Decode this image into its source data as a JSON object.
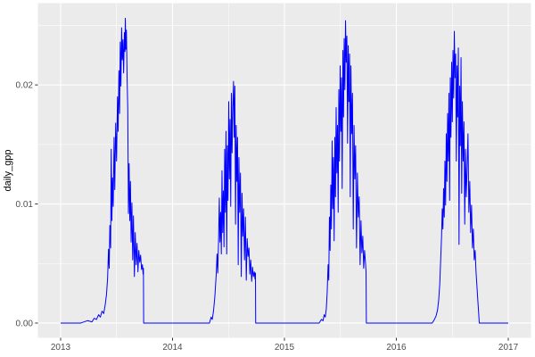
{
  "figure": {
    "background": "#FFFFFF"
  },
  "chart_data": {
    "type": "line",
    "title": "",
    "xlabel": "",
    "ylabel": "daily_gpp",
    "style": "ggplot2-grey-panel",
    "legend": "none",
    "grid": true,
    "panel_bg": "#EBEBEB",
    "grid_major_color": "#FFFFFF",
    "grid_minor_color": "#FFFFFF",
    "axis_text_color": "#4D4D4D",
    "axis_title_color": "#000000",
    "tick_mark_color": "#333333",
    "line_color": "#0000FF",
    "xlim": [
      2012.797,
      2017.203
    ],
    "ylim": [
      -0.00124,
      0.02687
    ],
    "x_ticks": [
      {
        "value": 2013,
        "label": "2013"
      },
      {
        "value": 2014,
        "label": "2014"
      },
      {
        "value": 2015,
        "label": "2015"
      },
      {
        "value": 2016,
        "label": "2016"
      },
      {
        "value": 2017,
        "label": "2017"
      }
    ],
    "x_minor_ticks": [
      2013.5,
      2014.5,
      2015.5,
      2016.5
    ],
    "y_ticks": [
      {
        "value": 0.0,
        "label": "0.00"
      },
      {
        "value": 0.01,
        "label": "0.01"
      },
      {
        "value": 0.02,
        "label": "0.02"
      }
    ],
    "y_minor_ticks": [
      0.005,
      0.015,
      0.025
    ],
    "series": [
      {
        "name": "daily_gpp",
        "color": "#0000FF",
        "points": [
          [
            2013.0,
            0
          ],
          [
            2013.18,
            0
          ],
          [
            2013.24,
            0.0002
          ],
          [
            2013.28,
            0.0001
          ],
          [
            2013.3,
            0.0004
          ],
          [
            2013.32,
            0.0003
          ],
          [
            2013.34,
            0.0007
          ],
          [
            2013.355,
            0.0005
          ],
          [
            2013.37,
            0.001
          ],
          [
            2013.385,
            0.0008
          ],
          [
            2013.398,
            0.0015
          ],
          [
            2013.41,
            0.0024
          ],
          [
            2013.42,
            0.0038
          ],
          [
            2013.428,
            0.0062
          ],
          [
            2013.434,
            0.0046
          ],
          [
            2013.44,
            0.0082
          ],
          [
            2013.447,
            0.0063
          ],
          [
            2013.452,
            0.0146
          ],
          [
            2013.458,
            0.0086
          ],
          [
            2013.464,
            0.0122
          ],
          [
            2013.47,
            0.0098
          ],
          [
            2013.478,
            0.0156
          ],
          [
            2013.484,
            0.0112
          ],
          [
            2013.492,
            0.0168
          ],
          [
            2013.5,
            0.0136
          ],
          [
            2013.508,
            0.019
          ],
          [
            2013.514,
            0.0161
          ],
          [
            2013.521,
            0.0212
          ],
          [
            2013.527,
            0.0176
          ],
          [
            2013.533,
            0.0236
          ],
          [
            2013.539,
            0.0199
          ],
          [
            2013.545,
            0.0248
          ],
          [
            2013.551,
            0.0221
          ],
          [
            2013.557,
            0.0238
          ],
          [
            2013.563,
            0.021
          ],
          [
            2013.57,
            0.0244
          ],
          [
            2013.575,
            0.0228
          ],
          [
            2013.578,
            0.0256
          ],
          [
            2013.583,
            0.023
          ],
          [
            2013.588,
            0.0246
          ],
          [
            2013.594,
            0.0206
          ],
          [
            2013.6,
            0.018
          ],
          [
            2013.606,
            0.0092
          ],
          [
            2013.612,
            0.0134
          ],
          [
            2013.618,
            0.0086
          ],
          [
            2013.624,
            0.0119
          ],
          [
            2013.63,
            0.0068
          ],
          [
            2013.637,
            0.0101
          ],
          [
            2013.644,
            0.0053
          ],
          [
            2013.651,
            0.009
          ],
          [
            2013.659,
            0.0039
          ],
          [
            2013.667,
            0.0076
          ],
          [
            2013.675,
            0.0049
          ],
          [
            2013.683,
            0.0067
          ],
          [
            2013.691,
            0.0043
          ],
          [
            2013.699,
            0.0061
          ],
          [
            2013.707,
            0.0051
          ],
          [
            2013.715,
            0.0057
          ],
          [
            2013.723,
            0.0045
          ],
          [
            2013.731,
            0.0049
          ],
          [
            2013.737,
            0.0041
          ],
          [
            2013.74,
            0.0046
          ],
          [
            2013.742,
            0
          ],
          [
            2013.75,
            0
          ],
          [
            2014.33,
            0
          ],
          [
            2014.345,
            0.0005
          ],
          [
            2014.355,
            0.0003
          ],
          [
            2014.366,
            0.001
          ],
          [
            2014.378,
            0.0022
          ],
          [
            2014.39,
            0.004
          ],
          [
            2014.398,
            0.0058
          ],
          [
            2014.404,
            0.0042
          ],
          [
            2014.412,
            0.0072
          ],
          [
            2014.418,
            0.0105
          ],
          [
            2014.424,
            0.0068
          ],
          [
            2014.43,
            0.0093
          ],
          [
            2014.436,
            0.0058
          ],
          [
            2014.442,
            0.0128
          ],
          [
            2014.448,
            0.0076
          ],
          [
            2014.454,
            0.0111
          ],
          [
            2014.46,
            0.0064
          ],
          [
            2014.466,
            0.0146
          ],
          [
            2014.472,
            0.0093
          ],
          [
            2014.478,
            0.0161
          ],
          [
            2014.484,
            0.0058
          ],
          [
            2014.49,
            0.0149
          ],
          [
            2014.496,
            0.0103
          ],
          [
            2014.502,
            0.0186
          ],
          [
            2014.508,
            0.0121
          ],
          [
            2014.514,
            0.0171
          ],
          [
            2014.52,
            0.0098
          ],
          [
            2014.526,
            0.0193
          ],
          [
            2014.532,
            0.0143
          ],
          [
            2014.538,
            0.0179
          ],
          [
            2014.545,
            0.0203
          ],
          [
            2014.551,
            0.0156
          ],
          [
            2014.557,
            0.0199
          ],
          [
            2014.563,
            0.0083
          ],
          [
            2014.569,
            0.0166
          ],
          [
            2014.575,
            0.0119
          ],
          [
            2014.581,
            0.0156
          ],
          [
            2014.587,
            0.0049
          ],
          [
            2014.593,
            0.0139
          ],
          [
            2014.6,
            0.0093
          ],
          [
            2014.607,
            0.0126
          ],
          [
            2014.614,
            0.0039
          ],
          [
            2014.621,
            0.0109
          ],
          [
            2014.628,
            0.0073
          ],
          [
            2014.635,
            0.0096
          ],
          [
            2014.643,
            0.0053
          ],
          [
            2014.651,
            0.0089
          ],
          [
            2014.659,
            0.0036
          ],
          [
            2014.667,
            0.0071
          ],
          [
            2014.675,
            0.0056
          ],
          [
            2014.683,
            0.0063
          ],
          [
            2014.691,
            0.0041
          ],
          [
            2014.699,
            0.0053
          ],
          [
            2014.707,
            0.0035
          ],
          [
            2014.715,
            0.0047
          ],
          [
            2014.723,
            0.0039
          ],
          [
            2014.731,
            0.0043
          ],
          [
            2014.737,
            0.0037
          ],
          [
            2014.741,
            0.0042
          ],
          [
            2014.743,
            0
          ],
          [
            2014.75,
            0
          ],
          [
            2015.31,
            0
          ],
          [
            2015.33,
            0.0003
          ],
          [
            2015.345,
            0.0002
          ],
          [
            2015.355,
            0.0007
          ],
          [
            2015.365,
            0.0005
          ],
          [
            2015.374,
            0.0012
          ],
          [
            2015.382,
            0.0026
          ],
          [
            2015.39,
            0.0049
          ],
          [
            2015.396,
            0.0036
          ],
          [
            2015.402,
            0.0089
          ],
          [
            2015.408,
            0.0061
          ],
          [
            2015.414,
            0.0116
          ],
          [
            2015.42,
            0.0079
          ],
          [
            2015.426,
            0.0153
          ],
          [
            2015.432,
            0.0096
          ],
          [
            2015.438,
            0.0139
          ],
          [
            2015.444,
            0.0069
          ],
          [
            2015.45,
            0.0156
          ],
          [
            2015.456,
            0.0106
          ],
          [
            2015.462,
            0.0181
          ],
          [
            2015.468,
            0.0126
          ],
          [
            2015.474,
            0.0166
          ],
          [
            2015.48,
            0.0093
          ],
          [
            2015.486,
            0.0196
          ],
          [
            2015.492,
            0.0136
          ],
          [
            2015.498,
            0.0216
          ],
          [
            2015.504,
            0.0161
          ],
          [
            2015.51,
            0.0206
          ],
          [
            2015.516,
            0.0113
          ],
          [
            2015.522,
            0.0229
          ],
          [
            2015.528,
            0.0173
          ],
          [
            2015.534,
            0.0239
          ],
          [
            2015.54,
            0.0196
          ],
          [
            2015.546,
            0.0254
          ],
          [
            2015.552,
            0.0219
          ],
          [
            2015.558,
            0.0241
          ],
          [
            2015.564,
            0.0151
          ],
          [
            2015.57,
            0.0233
          ],
          [
            2015.576,
            0.0186
          ],
          [
            2015.582,
            0.0226
          ],
          [
            2015.588,
            0.0106
          ],
          [
            2015.594,
            0.0216
          ],
          [
            2015.601,
            0.0159
          ],
          [
            2015.608,
            0.0193
          ],
          [
            2015.615,
            0.0079
          ],
          [
            2015.622,
            0.0166
          ],
          [
            2015.629,
            0.0121
          ],
          [
            2015.636,
            0.0149
          ],
          [
            2015.644,
            0.0063
          ],
          [
            2015.652,
            0.0126
          ],
          [
            2015.66,
            0.0089
          ],
          [
            2015.668,
            0.0106
          ],
          [
            2015.676,
            0.0049
          ],
          [
            2015.684,
            0.0086
          ],
          [
            2015.692,
            0.0059
          ],
          [
            2015.7,
            0.0073
          ],
          [
            2015.708,
            0.0046
          ],
          [
            2015.716,
            0.0061
          ],
          [
            2015.724,
            0.0051
          ],
          [
            2015.729,
            0.0043
          ],
          [
            2015.732,
            0
          ],
          [
            2015.74,
            0
          ],
          [
            2016.32,
            0
          ],
          [
            2016.34,
            0.0003
          ],
          [
            2016.355,
            0.0006
          ],
          [
            2016.368,
            0.0011
          ],
          [
            2016.378,
            0.0019
          ],
          [
            2016.388,
            0.0033
          ],
          [
            2016.396,
            0.0053
          ],
          [
            2016.404,
            0.0073
          ],
          [
            2016.41,
            0.0096
          ],
          [
            2016.416,
            0.0079
          ],
          [
            2016.422,
            0.0113
          ],
          [
            2016.428,
            0.0089
          ],
          [
            2016.434,
            0.0136
          ],
          [
            2016.44,
            0.0099
          ],
          [
            2016.446,
            0.0159
          ],
          [
            2016.452,
            0.0119
          ],
          [
            2016.458,
            0.0176
          ],
          [
            2016.464,
            0.0136
          ],
          [
            2016.47,
            0.0193
          ],
          [
            2016.476,
            0.0103
          ],
          [
            2016.482,
            0.0206
          ],
          [
            2016.488,
            0.0156
          ],
          [
            2016.494,
            0.0219
          ],
          [
            2016.5,
            0.0169
          ],
          [
            2016.506,
            0.0229
          ],
          [
            2016.512,
            0.0189
          ],
          [
            2016.518,
            0.0245
          ],
          [
            2016.524,
            0.0206
          ],
          [
            2016.53,
            0.0226
          ],
          [
            2016.536,
            0.0136
          ],
          [
            2016.542,
            0.0216
          ],
          [
            2016.548,
            0.0173
          ],
          [
            2016.554,
            0.0231
          ],
          [
            2016.56,
            0.0066
          ],
          [
            2016.566,
            0.0199
          ],
          [
            2016.572,
            0.0149
          ],
          [
            2016.578,
            0.0223
          ],
          [
            2016.584,
            0.0109
          ],
          [
            2016.59,
            0.0186
          ],
          [
            2016.597,
            0.0136
          ],
          [
            2016.604,
            0.0169
          ],
          [
            2016.611,
            0.0083
          ],
          [
            2016.618,
            0.0146
          ],
          [
            2016.625,
            0.0106
          ],
          [
            2016.632,
            0.0129
          ],
          [
            2016.64,
            0.0159
          ],
          [
            2016.648,
            0.0093
          ],
          [
            2016.656,
            0.0119
          ],
          [
            2016.664,
            0.0076
          ],
          [
            2016.672,
            0.0099
          ],
          [
            2016.68,
            0.0063
          ],
          [
            2016.688,
            0.0079
          ],
          [
            2016.696,
            0.0053
          ],
          [
            2016.704,
            0.0061
          ],
          [
            2016.712,
            0.0043
          ],
          [
            2016.72,
            0.0031
          ],
          [
            2016.728,
            0.0019
          ],
          [
            2016.735,
            0.0009
          ],
          [
            2016.741,
            0
          ],
          [
            2017.0,
            0
          ]
        ]
      }
    ]
  }
}
